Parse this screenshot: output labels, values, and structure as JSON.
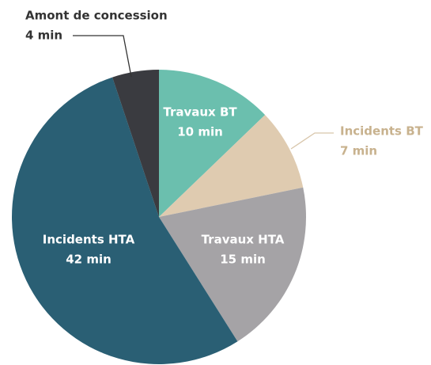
{
  "chart_data": {
    "type": "pie",
    "categories": [
      "Travaux BT",
      "Incidents BT",
      "Travaux HTA",
      "Incidents HTA",
      "Amont de concession"
    ],
    "values": [
      10,
      7,
      15,
      42,
      4
    ],
    "value_labels": [
      "10 min",
      "7 min",
      "15 min",
      "42 min",
      "4 min"
    ],
    "colors": [
      "#6bbfae",
      "#dfcbb0",
      "#a5a3a6",
      "#2a5f74",
      "#3a3b40"
    ]
  }
}
